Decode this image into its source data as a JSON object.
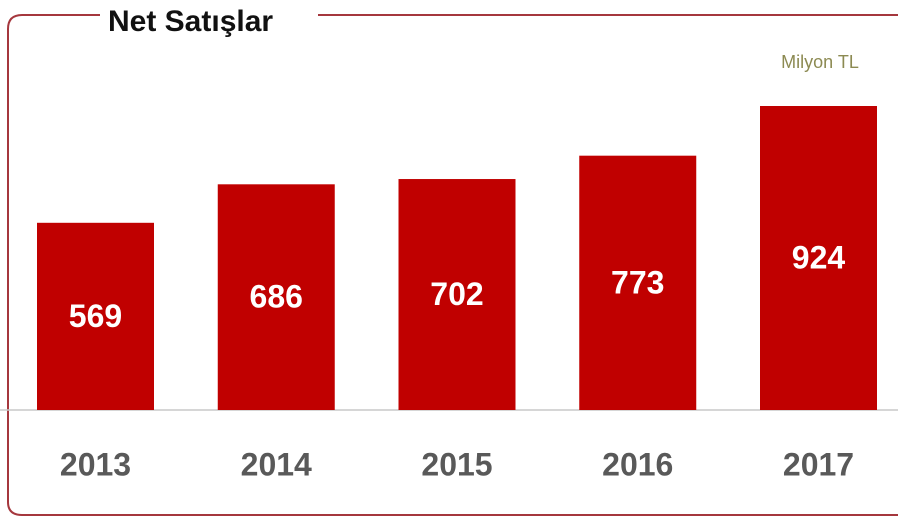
{
  "chart_data": {
    "type": "bar",
    "title": "Net Satışlar",
    "unit_label": "Milyon TL",
    "categories": [
      "2013",
      "2014",
      "2015",
      "2016",
      "2017"
    ],
    "values": [
      569,
      686,
      702,
      773,
      924
    ],
    "color": "#c00000"
  }
}
